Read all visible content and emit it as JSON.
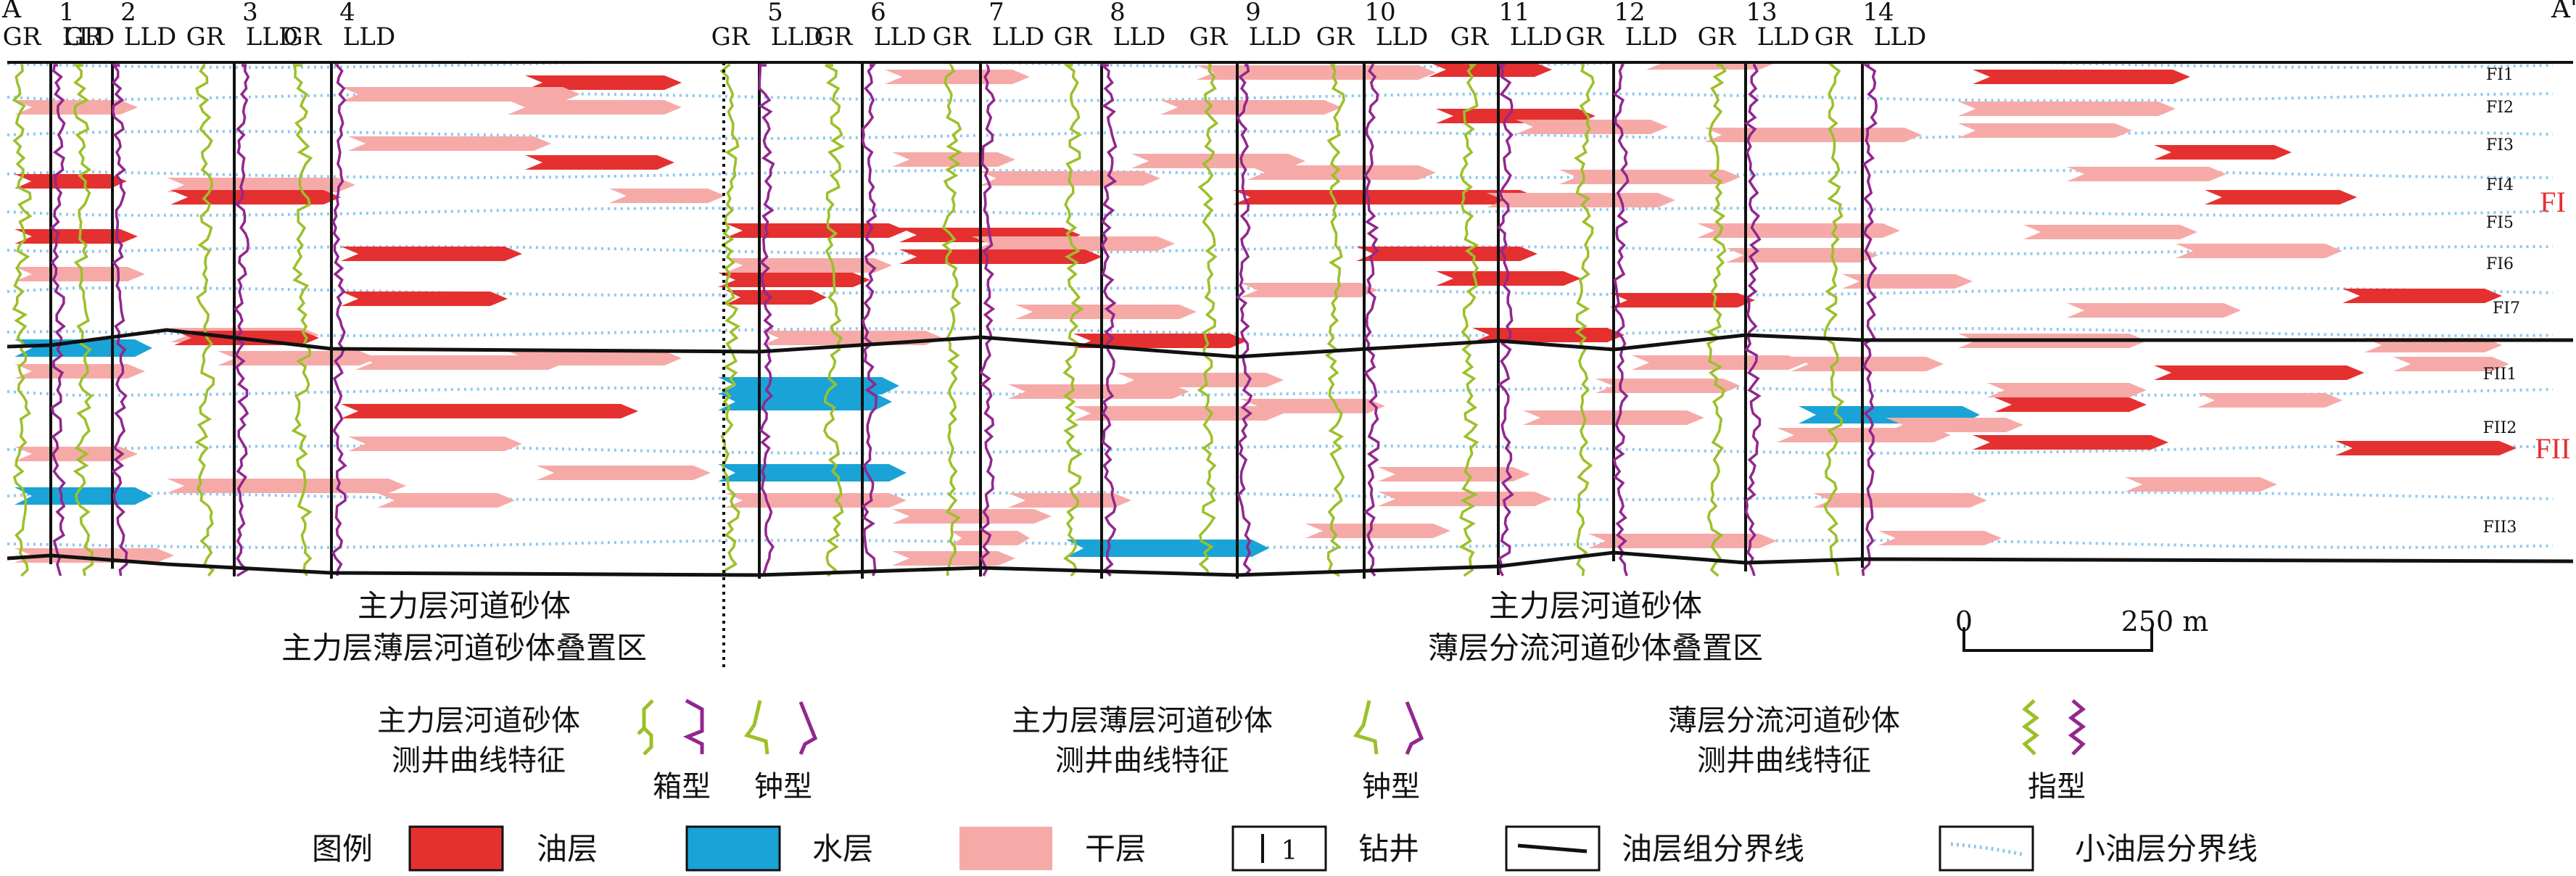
{
  "colors": {
    "oil": "#e53030",
    "water": "#19a3d6",
    "dry": "#f6aaa8",
    "gr_curve": "#9cc02a",
    "lld_curve": "#92278f",
    "group_boundary": "#111111",
    "sublayer_boundary": "#8ec8ee",
    "zone_label": "#e53030"
  },
  "section": {
    "end_left": "A",
    "end_right": "A'",
    "wells": [
      {
        "num": "1",
        "gr": "GR",
        "lld": "LLD"
      },
      {
        "num": "2",
        "gr": "GR",
        "lld": "LLD"
      },
      {
        "num": "3",
        "gr": "GR",
        "lld": "LLD"
      },
      {
        "num": "4",
        "gr": "GR",
        "lld": "LLD"
      },
      {
        "num": "5",
        "gr": "GR",
        "lld": "LLD"
      },
      {
        "num": "6",
        "gr": "GR",
        "lld": "LLD"
      },
      {
        "num": "7",
        "gr": "GR",
        "lld": "LLD"
      },
      {
        "num": "8",
        "gr": "GR",
        "lld": "LLD"
      },
      {
        "num": "9",
        "gr": "GR",
        "lld": "LLD"
      },
      {
        "num": "10",
        "gr": "GR",
        "lld": "LLD"
      },
      {
        "num": "11",
        "gr": "GR",
        "lld": "LLD"
      },
      {
        "num": "12",
        "gr": "GR",
        "lld": "LLD"
      },
      {
        "num": "13",
        "gr": "GR",
        "lld": "LLD"
      },
      {
        "num": "14",
        "gr": "GR",
        "lld": "LLD"
      }
    ],
    "sublayers_FI": [
      "FI1",
      "FI2",
      "FI3",
      "FI4",
      "FI5",
      "FI6",
      "FI7"
    ],
    "sublayers_FII": [
      "FII1",
      "FII2",
      "FII3"
    ],
    "group_FI": "FI",
    "group_FII": "FII"
  },
  "zones": {
    "left_line1": "主力层河道砂体",
    "left_line2": "主力层薄层河道砂体叠置区",
    "right_line1": "主力层河道砂体",
    "right_line2": "薄层分流河道砂体叠置区"
  },
  "scale_bar": {
    "start": "0",
    "end": "250 m"
  },
  "curve_types": {
    "main": {
      "line1": "主力层河道砂体",
      "line2": "测井曲线特征",
      "type1": "箱型",
      "type2": "钟型"
    },
    "thin": {
      "line1": "主力层薄层河道砂体",
      "line2": "测井曲线特征",
      "type1": "钟型"
    },
    "branch": {
      "line1": "薄层分流河道砂体",
      "line2": "测井曲线特征",
      "type1": "指型"
    }
  },
  "legend": {
    "title": "图例",
    "oil": "油层",
    "water": "水层",
    "dry": "干层",
    "well_symbol": "1",
    "well": "钻井",
    "group_boundary": "油层组分界线",
    "sublayer_boundary": "小油层分界线"
  }
}
